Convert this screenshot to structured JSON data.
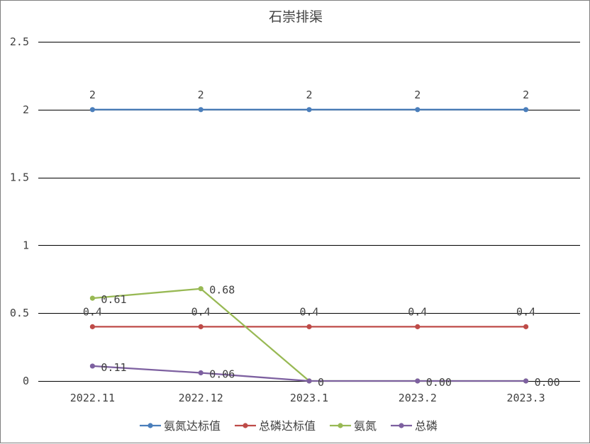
{
  "chart_data": {
    "type": "line",
    "title": "石崇排渠",
    "categories": [
      "2022.11",
      "2022.12",
      "2023.1",
      "2023.2",
      "2023.3"
    ],
    "ylim": [
      0,
      2.5
    ],
    "y_ticks": [
      "0",
      "0.5",
      "1",
      "1.5",
      "2",
      "2.5"
    ],
    "grid": true,
    "legend_position": "bottom",
    "series": [
      {
        "name": "氨氮达标值",
        "color": "#4a7ebb",
        "values": [
          2,
          2,
          2,
          2,
          2
        ],
        "labels": [
          "2",
          "2",
          "2",
          "2",
          "2"
        ],
        "label_position": "above"
      },
      {
        "name": "总磷达标值",
        "color": "#be4b48",
        "values": [
          0.4,
          0.4,
          0.4,
          0.4,
          0.4
        ],
        "labels": [
          "0.4",
          "0.4",
          "0.4",
          "0.4",
          "0.4"
        ],
        "label_position": "above"
      },
      {
        "name": "氨氮",
        "color": "#98b954",
        "values": [
          0.61,
          0.68,
          0,
          0,
          0
        ],
        "labels": [
          "0.61",
          "0.68",
          "0",
          "",
          ""
        ],
        "label_position": "right"
      },
      {
        "name": "总磷",
        "color": "#7d60a0",
        "values": [
          0.11,
          0.06,
          0,
          0,
          0
        ],
        "labels": [
          "0.11",
          "0.06",
          "",
          "0.00",
          "0.00"
        ],
        "label_position": "right"
      }
    ]
  }
}
